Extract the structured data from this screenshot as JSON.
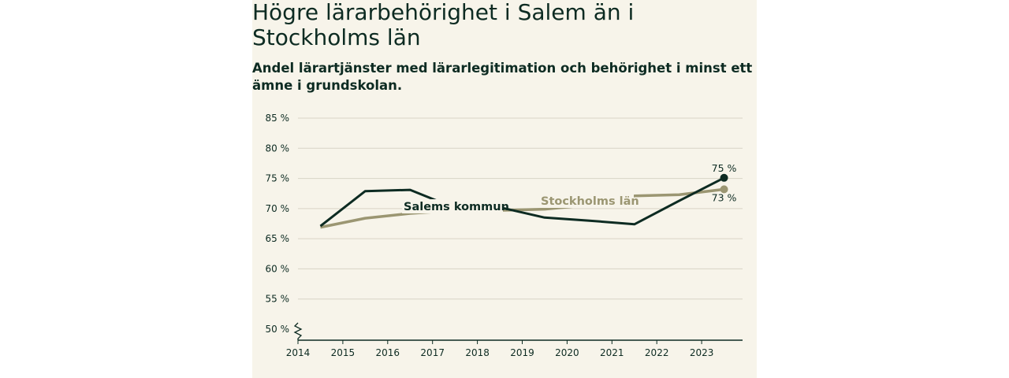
{
  "title": "Högre lärarbehörighet i Salem än i Stockholms län",
  "subtitle": "Andel lärartjänster med lärarlegitimation och behörighet i minst ett ämne i grundskolan.",
  "colors": {
    "background": "#f7f4ea",
    "salem": "#0d2b22",
    "stockholm": "#9b9672",
    "grid": "#d8d4c6",
    "text": "#0d2b22"
  },
  "chart_data": {
    "type": "line",
    "title": "Högre lärarbehörighet i Salem än i Stockholms län",
    "subtitle": "Andel lärartjänster med lärarlegitimation och behörighet i minst ett ämne i grundskolan.",
    "xlabel": "",
    "ylabel": "",
    "x": [
      2014,
      2015,
      2016,
      2017,
      2018,
      2019,
      2020,
      2021,
      2022,
      2023
    ],
    "x_tick_labels": [
      "2014",
      "2015",
      "2016",
      "2017",
      "2018",
      "2019",
      "2020",
      "2021",
      "2022",
      "2023"
    ],
    "y_ticks": [
      50,
      55,
      60,
      65,
      70,
      75,
      80,
      85
    ],
    "y_tick_labels": [
      "50 %",
      "55 %",
      "60 %",
      "65 %",
      "70 %",
      "75 %",
      "80 %",
      "85 %"
    ],
    "ylim": [
      50,
      85
    ],
    "axis_break": true,
    "grid": true,
    "series": [
      {
        "name": "Salems kommun",
        "values": [
          67.1,
          72.9,
          73.1,
          70.1,
          70.2,
          68.5,
          68.0,
          67.4,
          71.3,
          75.1
        ],
        "end_label": "75 %"
      },
      {
        "name": "Stockholms län",
        "values": [
          66.9,
          68.4,
          69.2,
          69.7,
          69.7,
          69.9,
          70.6,
          72.1,
          72.3,
          73.2
        ],
        "end_label": "73 %"
      }
    ]
  }
}
